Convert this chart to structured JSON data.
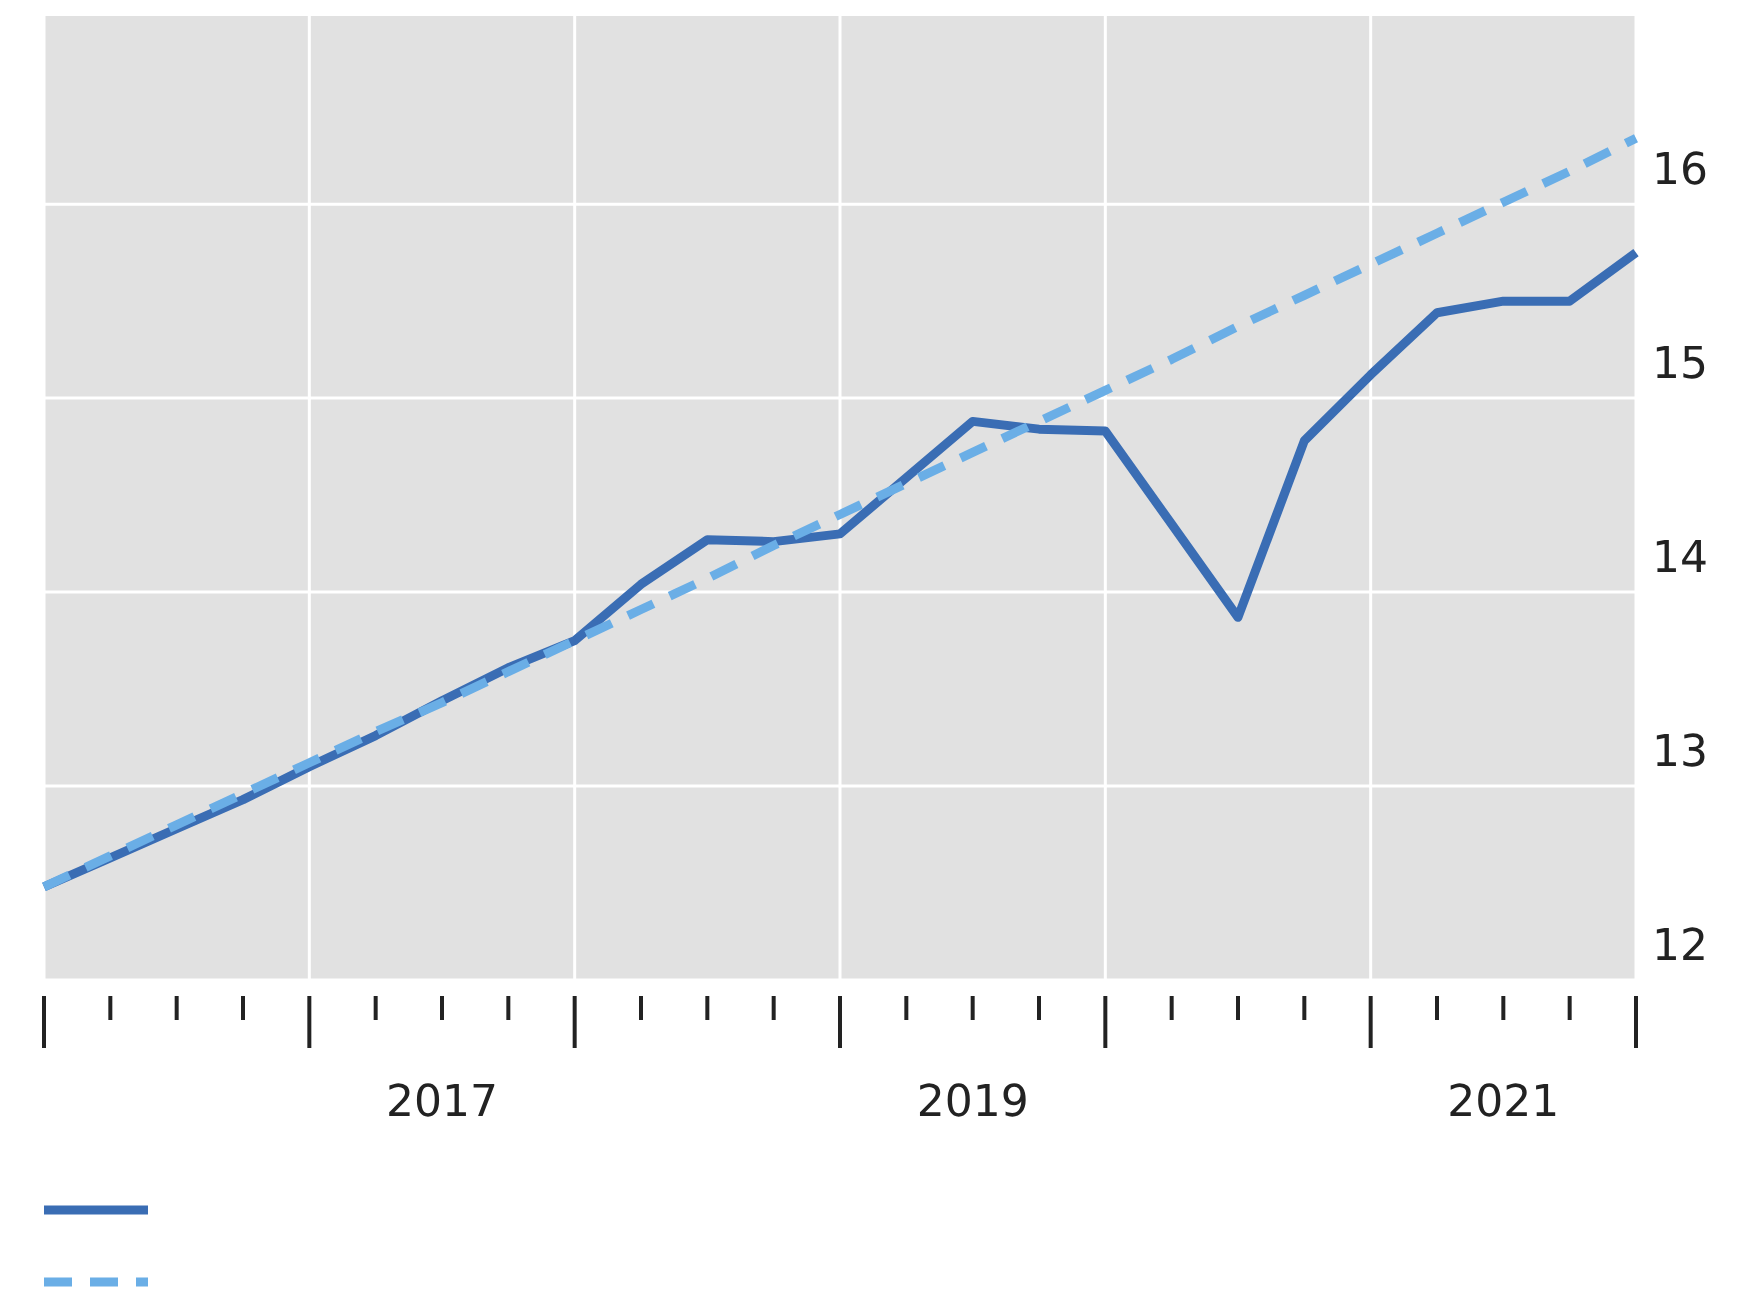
{
  "chart_data": {
    "type": "line",
    "x": [
      2016,
      2016.25,
      2016.5,
      2016.75,
      2017,
      2017.25,
      2017.5,
      2017.75,
      2018,
      2018.25,
      2018.5,
      2018.75,
      2019,
      2019.25,
      2019.5,
      2019.75,
      2020,
      2020.25,
      2020.5,
      2020.75,
      2021,
      2021.25,
      2021.5,
      2021.75,
      2022
    ],
    "series": [
      {
        "color": "#3a6db4",
        "line_style": "solid",
        "values": [
          12.48,
          12.63,
          12.78,
          12.93,
          13.1,
          13.26,
          13.44,
          13.61,
          13.75,
          14.04,
          14.27,
          14.26,
          14.3,
          14.59,
          14.88,
          14.84,
          14.83,
          14.35,
          13.87,
          14.78,
          15.12,
          15.44,
          15.5,
          15.5,
          15.75
        ]
      },
      {
        "color": "#6aaee6",
        "line_style": "dashed",
        "values": [
          12.48,
          12.64,
          12.8,
          12.96,
          13.12,
          13.28,
          13.43,
          13.59,
          13.75,
          13.91,
          14.07,
          14.24,
          14.4,
          14.56,
          14.72,
          14.88,
          15.04,
          15.2,
          15.37,
          15.53,
          15.69,
          15.85,
          16.01,
          16.17,
          16.34
        ]
      }
    ],
    "xlim": [
      2016,
      2022
    ],
    "xticks": [
      {
        "value": 2016,
        "label": null
      },
      {
        "value": 2016.25,
        "label": null
      },
      {
        "value": 2016.5,
        "label": null
      },
      {
        "value": 2016.75,
        "label": null
      },
      {
        "value": 2017,
        "label": null
      },
      {
        "value": 2017.25,
        "label": null
      },
      {
        "value": 2017.5,
        "label": "2017"
      },
      {
        "value": 2017.75,
        "label": null
      },
      {
        "value": 2018,
        "label": null
      },
      {
        "value": 2018.25,
        "label": null
      },
      {
        "value": 2018.5,
        "label": null
      },
      {
        "value": 2018.75,
        "label": null
      },
      {
        "value": 2019,
        "label": null
      },
      {
        "value": 2019.25,
        "label": null
      },
      {
        "value": 2019.5,
        "label": "2019"
      },
      {
        "value": 2019.75,
        "label": null
      },
      {
        "value": 2020,
        "label": null
      },
      {
        "value": 2020.25,
        "label": null
      },
      {
        "value": 2020.5,
        "label": null
      },
      {
        "value": 2020.75,
        "label": null
      },
      {
        "value": 2021,
        "label": null
      },
      {
        "value": 2021.25,
        "label": null
      },
      {
        "value": 2021.5,
        "label": "2021"
      },
      {
        "value": 2021.75,
        "label": null
      },
      {
        "value": 2022,
        "label": null
      }
    ],
    "ylim": [
      12,
      16.97
    ],
    "yticks": [
      12,
      13,
      14,
      15,
      16
    ],
    "grid": true
  }
}
